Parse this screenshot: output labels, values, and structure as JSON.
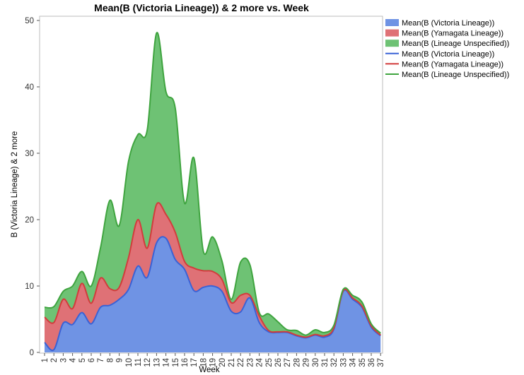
{
  "chart_data": {
    "type": "area",
    "stacked": true,
    "title": "Mean(B (Victoria Lineage)) & 2 more vs. Week",
    "xlabel": "Week",
    "ylabel": "B (Victoria Lineage) & 2 more",
    "ylim": [
      0,
      50
    ],
    "yticks": [
      0,
      10,
      20,
      30,
      40,
      50
    ],
    "categories": [
      "1",
      "2",
      "3",
      "4",
      "5",
      "6",
      "7",
      "8",
      "9",
      "10",
      "11",
      "12",
      "13",
      "14",
      "15",
      "16",
      "17",
      "18",
      "19",
      "20",
      "21",
      "22",
      "23",
      "24",
      "25",
      "26",
      "27",
      "28",
      "29",
      "30",
      "31",
      "32",
      "33",
      "34",
      "35",
      "36",
      "37"
    ],
    "series": [
      {
        "name": "Mean(B (Victoria Lineage))",
        "color": "#6f93e4",
        "line_color": "#3a62d6",
        "values": [
          1.5,
          0.4,
          4.4,
          4.2,
          6.0,
          4.3,
          6.8,
          7.1,
          8.0,
          9.5,
          13.0,
          11.3,
          16.5,
          17.2,
          14.0,
          12.5,
          9.3,
          9.8,
          10.0,
          9.2,
          6.2,
          6.1,
          8.2,
          4.5,
          3.1,
          3.0,
          3.0,
          2.5,
          2.2,
          2.6,
          2.3,
          3.5,
          9.2,
          8.0,
          6.8,
          3.8,
          2.5
        ]
      },
      {
        "name": "Mean(B (Yamagata Lineage))",
        "color": "#df7176",
        "line_color": "#d23c3c",
        "values": [
          3.8,
          4.1,
          3.6,
          2.4,
          4.4,
          3.1,
          4.4,
          2.5,
          1.8,
          4.8,
          7.0,
          4.4,
          5.8,
          3.6,
          4.1,
          1.2,
          3.4,
          2.5,
          2.2,
          1.8,
          1.3,
          2.5,
          0.4,
          1.0,
          0.2,
          0.1,
          0.1,
          0.1,
          0.1,
          0.1,
          0.2,
          0.2,
          0.1,
          0.2,
          0.2,
          0.2,
          0.1
        ]
      },
      {
        "name": "Mean(B (Lineage Unspecified))",
        "color": "#6ec274",
        "line_color": "#3fa43f",
        "values": [
          1.5,
          2.4,
          1.2,
          3.4,
          1.8,
          2.6,
          4.6,
          13.3,
          9.3,
          14.5,
          12.8,
          17.8,
          25.8,
          18.5,
          18.7,
          8.8,
          16.6,
          3.0,
          5.2,
          2.8,
          0.5,
          5.0,
          4.6,
          0.5,
          2.5,
          1.5,
          0.3,
          0.7,
          0.3,
          0.7,
          0.5,
          0.4,
          0.2,
          0.4,
          0.6,
          0.3,
          0.3
        ]
      }
    ],
    "legend": {
      "position": "right",
      "entries": [
        {
          "label": "Mean(B (Victoria Lineage))",
          "kind": "swatch",
          "color": "#6f93e4"
        },
        {
          "label": "Mean(B (Yamagata Lineage))",
          "kind": "swatch",
          "color": "#df7176"
        },
        {
          "label": "Mean(B (Lineage Unspecified))",
          "kind": "swatch",
          "color": "#6ec274"
        },
        {
          "label": "Mean(B (Victoria Lineage))",
          "kind": "line",
          "color": "#3a62d6"
        },
        {
          "label": "Mean(B (Yamagata Lineage))",
          "kind": "line",
          "color": "#d23c3c"
        },
        {
          "label": "Mean(B (Lineage Unspecified))",
          "kind": "line",
          "color": "#3fa43f"
        }
      ]
    }
  }
}
